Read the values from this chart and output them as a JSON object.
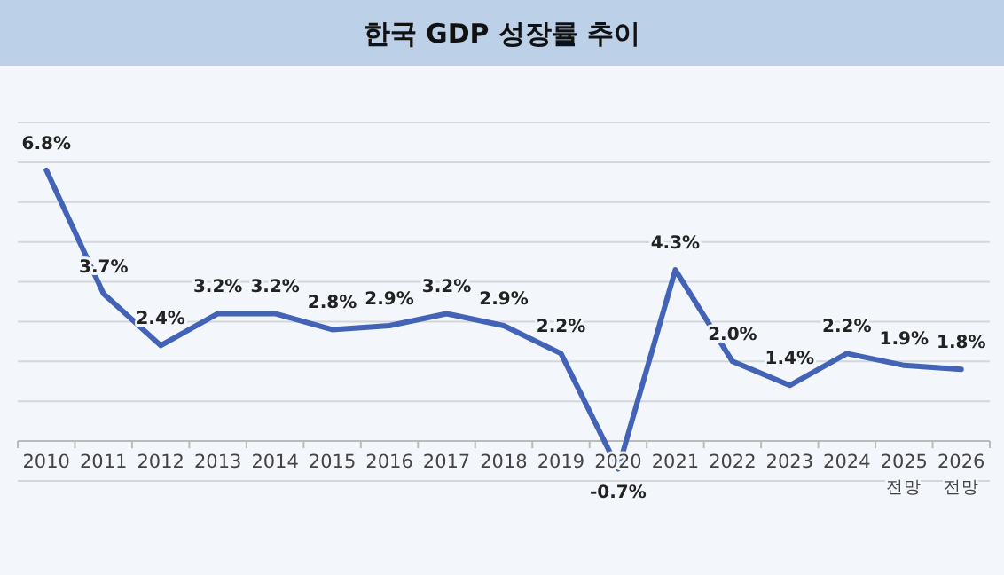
{
  "chart_data": {
    "type": "line",
    "title": "한국 GDP 성장률 추이",
    "categories": [
      "2010",
      "2011",
      "2012",
      "2013",
      "2014",
      "2015",
      "2016",
      "2017",
      "2018",
      "2019",
      "2020",
      "2021",
      "2022",
      "2023",
      "2024",
      "2025\n전망",
      "2026\n전망"
    ],
    "series": [
      {
        "color": "#4263b6",
        "values": [
          6.8,
          3.7,
          2.4,
          3.2,
          3.2,
          2.8,
          2.9,
          3.2,
          2.9,
          2.2,
          -0.7,
          4.3,
          2.0,
          1.4,
          2.2,
          1.9,
          1.8
        ],
        "value_labels": [
          "6.8%",
          "3.7%",
          "2.4%",
          "3.2%",
          "3.2%",
          "2.8%",
          "2.9%",
          "3.2%",
          "2.9%",
          "2.2%",
          "-0.7%",
          "4.3%",
          "2.0%",
          "1.4%",
          "2.2%",
          "1.9%",
          "1.8%"
        ]
      }
    ],
    "ylim": [
      -1,
      8
    ],
    "yticks": [
      {
        "value": -1,
        "label": null
      },
      {
        "value": 0,
        "label": null
      },
      {
        "value": 1,
        "label": null
      },
      {
        "value": 2,
        "label": null
      },
      {
        "value": 3,
        "label": null
      },
      {
        "value": 4,
        "label": null
      },
      {
        "value": 5,
        "label": null
      },
      {
        "value": 6,
        "label": null
      },
      {
        "value": 7,
        "label": null
      },
      {
        "value": 8,
        "label": null
      }
    ],
    "grid": "y",
    "tick_labels": "x",
    "marker": "none"
  }
}
